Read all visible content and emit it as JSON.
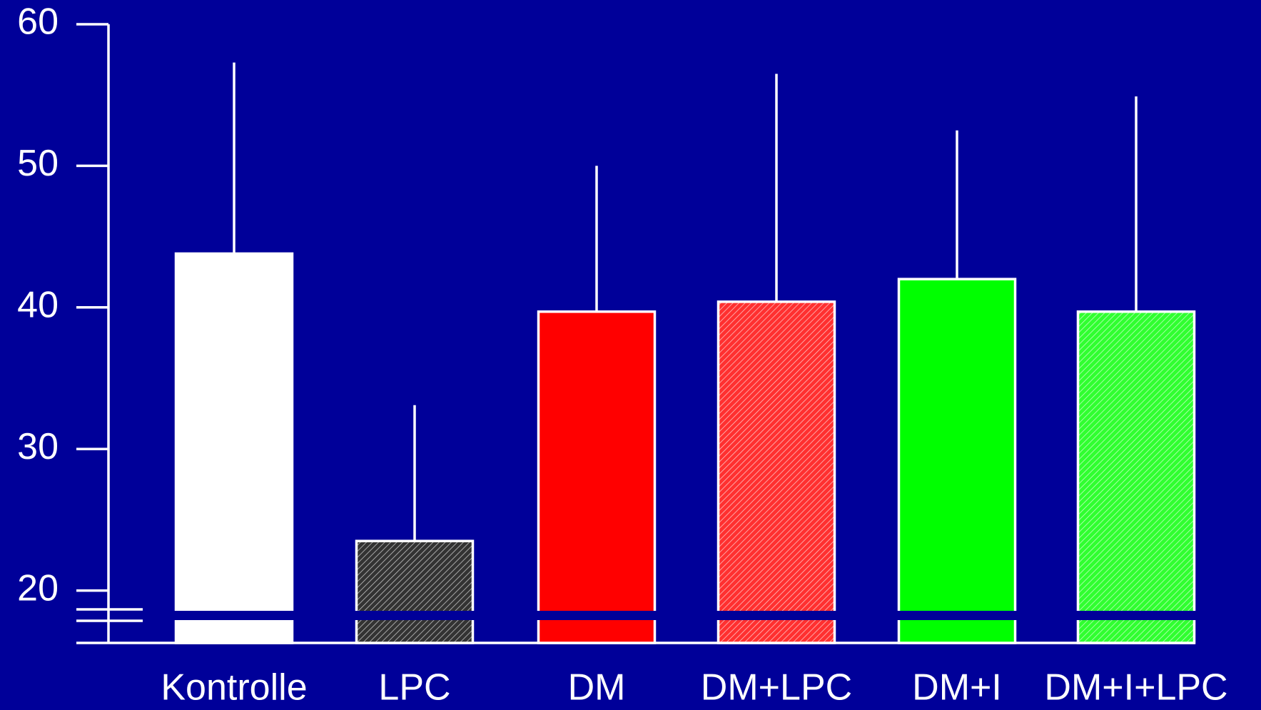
{
  "chart_data": {
    "type": "bar",
    "categories": [
      "Kontrolle",
      "LPC",
      "DM",
      "DM+LPC",
      "DM+I",
      "DM+I+LPC"
    ],
    "values": [
      43.8,
      23.5,
      39.7,
      40.4,
      42.0,
      39.7
    ],
    "errors": [
      13.5,
      9.6,
      10.3,
      16.1,
      10.5,
      15.2
    ],
    "colors": [
      "#ffffff",
      "#333333",
      "#ff0000",
      "#ff3030",
      "#00ff00",
      "#30ff30"
    ],
    "hatched": [
      false,
      true,
      false,
      true,
      false,
      true
    ],
    "ylim": [
      16.3,
      60
    ],
    "yticks": [
      20,
      30,
      40,
      50,
      60
    ],
    "axis_break": true
  }
}
